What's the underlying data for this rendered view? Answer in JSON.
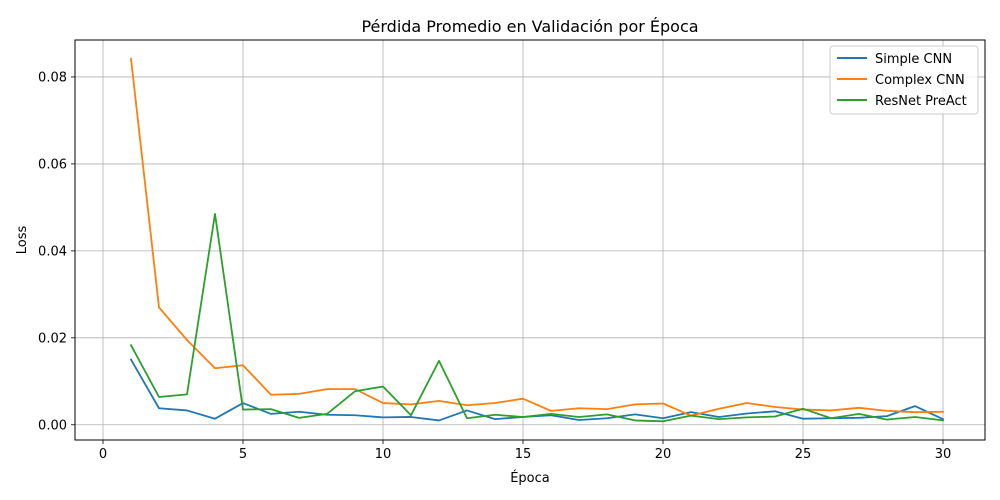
{
  "chart_data": {
    "type": "line",
    "title": "Pérdida Promedio en Validación por Época",
    "xlabel": "Época",
    "ylabel": "Loss",
    "xlim": [
      -1,
      31.5
    ],
    "ylim": [
      -0.0035,
      0.0885
    ],
    "xticks": [
      0,
      5,
      10,
      15,
      20,
      25,
      30
    ],
    "yticks": [
      0.0,
      0.02,
      0.04,
      0.06,
      0.08
    ],
    "ytick_labels": [
      "0.00",
      "0.02",
      "0.04",
      "0.06",
      "0.08"
    ],
    "grid": true,
    "legend_position": "top-right",
    "x": [
      1,
      2,
      3,
      4,
      5,
      6,
      7,
      8,
      9,
      10,
      11,
      12,
      13,
      14,
      15,
      16,
      17,
      18,
      19,
      20,
      21,
      22,
      23,
      24,
      25,
      26,
      27,
      28,
      29,
      30
    ],
    "series": [
      {
        "name": "Simple CNN",
        "color": "#1f77b4",
        "values": [
          0.015,
          0.0038,
          0.0033,
          0.0014,
          0.005,
          0.0025,
          0.003,
          0.0023,
          0.0022,
          0.0017,
          0.0018,
          0.001,
          0.0033,
          0.0013,
          0.0018,
          0.0022,
          0.0011,
          0.0015,
          0.0024,
          0.0015,
          0.0029,
          0.0018,
          0.0026,
          0.0031,
          0.0014,
          0.0015,
          0.0016,
          0.002,
          0.0043,
          0.0013
        ]
      },
      {
        "name": "Complex CNN",
        "color": "#ff7f0e",
        "values": [
          0.0842,
          0.027,
          0.0195,
          0.013,
          0.0137,
          0.0069,
          0.0071,
          0.0082,
          0.0082,
          0.005,
          0.0047,
          0.0055,
          0.0045,
          0.005,
          0.006,
          0.0032,
          0.0038,
          0.0036,
          0.0047,
          0.0049,
          0.0021,
          0.0037,
          0.005,
          0.0041,
          0.0035,
          0.0033,
          0.0039,
          0.0032,
          0.0029,
          0.003
        ]
      },
      {
        "name": "ResNet PreAct",
        "color": "#2ca02c",
        "values": [
          0.0183,
          0.0064,
          0.007,
          0.0485,
          0.0035,
          0.0036,
          0.0016,
          0.0025,
          0.0077,
          0.0088,
          0.0022,
          0.0147,
          0.0015,
          0.0023,
          0.0018,
          0.0025,
          0.0018,
          0.0024,
          0.001,
          0.0008,
          0.0021,
          0.0013,
          0.0017,
          0.0019,
          0.0037,
          0.0015,
          0.0025,
          0.0012,
          0.0018,
          0.001
        ]
      }
    ]
  }
}
